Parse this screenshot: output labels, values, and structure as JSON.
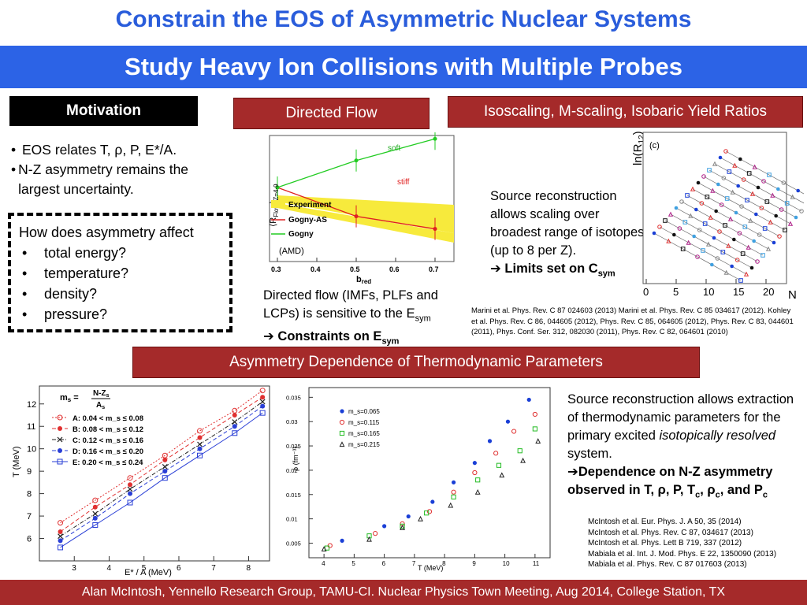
{
  "title": "Constrain the EOS of Asymmetric Nuclear Systems",
  "subtitle": "Study Heavy Ion Collisions with Multiple Probes",
  "motivation": {
    "header": "Motivation",
    "bullets": [
      "EOS relates T, ρ, P, E*/A.",
      "N-Z asymmetry remains the largest uncertainty."
    ],
    "question": "How does asymmetry affect",
    "items": [
      "total energy?",
      "temperature?",
      "density?",
      "pressure?"
    ]
  },
  "directed_flow": {
    "header": "Directed Flow",
    "caption_prefix": "Directed flow (IMFs, PLFs and LCPs) is sensitive to the E",
    "caption_sub": "sym",
    "conclusion_prefix": "Constraints on E",
    "conclusion_sub": "sym"
  },
  "isoscaling": {
    "header": "Isoscaling, M-scaling, Isobaric Yield Ratios",
    "text": "Source reconstruction allows scaling over broadest range of isotopes (up to 8 per Z).",
    "conclusion_prefix": "Limits set on C",
    "conclusion_sub": "sym",
    "refs": "Marini et al. Phys. Rev. C 87 024603 (2013) Marini et al. Phys. Rev. C 85 034617 (2012). Kohley et al. Phys. Rev. C 86, 044605 (2012), Phys. Rev. C 85, 064605 (2012), Phys. Rev. C 83, 044601 (2011), Phys. Conf. Ser. 312, 082030 (2011), Phys. Rev. C 82, 064601 (2010)"
  },
  "thermo": {
    "header": "Asymmetry Dependence of Thermodynamic Parameters",
    "text_prefix": "Source reconstruction allows extraction of thermodynamic parameters for the primary excited ",
    "text_italic": "isotopically resolved",
    "text_suffix": " system.",
    "conclusion": "Dependence on N-Z asymmetry observed in T, ρ, P, T",
    "conclusion_sub1": "c",
    "conclusion_mid": ", ρ",
    "conclusion_sub2": "c",
    "conclusion_end": ", and P",
    "conclusion_sub3": "c",
    "refs": [
      "McIntosh et al. Eur. Phys. J. A 50, 35 (2014)",
      "McIntosh et al. Phys. Rev. C 87, 034617 (2013)",
      "McIntosh et al. Phys. Lett B 719, 337 (2012)",
      "Mabiala et al. Int. J. Mod. Phys. E 22, 1350090 (2013)",
      "Mabiala et al. Phys. Rev. C 87 017603 (2013)"
    ]
  },
  "footer": "Alan McIntosh, Yennello Research Group, TAMU-CI. Nuclear Physics Town Meeting, Aug 2014, College Station, TX",
  "chart_data": [
    {
      "type": "line",
      "xlabel": "b_red",
      "ylabel": "⟨R_Flow⟩ Z=4-9",
      "xticks": [
        "0.3",
        "0.4",
        "0.5",
        "0.6",
        "0.7"
      ],
      "x": [
        0.3,
        0.5,
        0.7
      ],
      "series": [
        {
          "name": "Gogny-AS",
          "values": [
            0.85,
            0.69,
            0.62
          ],
          "color": "#e02020",
          "label": "stiff"
        },
        {
          "name": "Gogny",
          "values": [
            0.85,
            1.0,
            1.12
          ],
          "color": "#22cc22",
          "label": "soft"
        }
      ],
      "band": {
        "name": "Experiment",
        "color": "#f7ea3c"
      },
      "annotation": "(AMD)"
    },
    {
      "type": "scatter",
      "panel": "(c)",
      "xlabel": "N",
      "ylabel": "ln(R12)",
      "xticks": [
        "0",
        "5",
        "10",
        "15",
        "20"
      ]
    },
    {
      "type": "line",
      "xlabel": "E* / A (MeV)",
      "ylabel": "T (MeV)",
      "legend_title": "m_s = (N-Z_s)/A_s",
      "x": [
        2.6,
        3.6,
        4.6,
        5.6,
        6.6,
        7.6,
        8.4
      ],
      "xticks": [
        "3",
        "4",
        "5",
        "6",
        "7",
        "8"
      ],
      "yticks": [
        "6",
        "7",
        "8",
        "9",
        "10",
        "11",
        "12"
      ],
      "series": [
        {
          "name": "A: 0.04 < m_s ≤ 0.08",
          "values": [
            6.7,
            7.7,
            8.7,
            9.7,
            10.8,
            11.7,
            12.6
          ],
          "color": "#e03030",
          "marker": "circle-open"
        },
        {
          "name": "B: 0.08 < m_s ≤ 0.12",
          "values": [
            6.3,
            7.4,
            8.4,
            9.5,
            10.5,
            11.5,
            12.3
          ],
          "color": "#e03030",
          "marker": "circle-filled"
        },
        {
          "name": "C: 0.12 < m_s ≤ 0.16",
          "values": [
            6.1,
            7.1,
            8.2,
            9.2,
            10.2,
            11.2,
            12.1
          ],
          "color": "#222222",
          "marker": "cross"
        },
        {
          "name": "D: 0.16 < m_s ≤ 0.20",
          "values": [
            5.9,
            6.9,
            8.0,
            9.0,
            10.0,
            11.0,
            11.9
          ],
          "color": "#2a3fd6",
          "marker": "circle-filled"
        },
        {
          "name": "E: 0.20 < m_s ≤ 0.24",
          "values": [
            5.6,
            6.6,
            7.6,
            8.7,
            9.7,
            10.7,
            11.6
          ],
          "color": "#2a3fd6",
          "marker": "square-open"
        }
      ]
    },
    {
      "type": "scatter",
      "xlabel": "T (MeV)",
      "ylabel": "ρ (fm⁻³)",
      "xticks": [
        "4",
        "5",
        "6",
        "7",
        "8",
        "9",
        "10",
        "11"
      ],
      "yticks": [
        "0.005",
        "0.01",
        "0.015",
        "0.02",
        "0.025",
        "0.03",
        "0.035"
      ],
      "series": [
        {
          "name": "m_s=0.065",
          "color": "#1a3fd6",
          "marker": "circle-filled",
          "x": [
            4.6,
            6.0,
            6.8,
            7.6,
            8.3,
            9.0,
            9.5,
            10.1,
            10.8
          ],
          "y": [
            0.0055,
            0.0085,
            0.0105,
            0.0135,
            0.0175,
            0.0215,
            0.026,
            0.03,
            0.0345
          ]
        },
        {
          "name": "m_s=0.115",
          "color": "#e03030",
          "marker": "circle-open",
          "x": [
            4.2,
            5.7,
            6.6,
            7.5,
            8.3,
            9.0,
            9.7,
            10.3,
            11.0
          ],
          "y": [
            0.0045,
            0.007,
            0.009,
            0.0115,
            0.0155,
            0.0195,
            0.0235,
            0.028,
            0.0315
          ]
        },
        {
          "name": "m_s=0.165",
          "color": "#22bb22",
          "marker": "square-open",
          "x": [
            4.1,
            5.5,
            6.6,
            7.4,
            8.3,
            9.1,
            9.8,
            10.5,
            11.0
          ],
          "y": [
            0.004,
            0.0065,
            0.0085,
            0.0112,
            0.0145,
            0.018,
            0.021,
            0.024,
            0.0285
          ]
        },
        {
          "name": "m_s=0.215",
          "color": "#222222",
          "marker": "triangle-open",
          "x": [
            4.0,
            5.5,
            6.6,
            7.2,
            8.2,
            9.1,
            9.9,
            10.6,
            11.1
          ],
          "y": [
            0.0038,
            0.0058,
            0.0082,
            0.01,
            0.0128,
            0.0155,
            0.019,
            0.022,
            0.026
          ]
        }
      ]
    }
  ]
}
